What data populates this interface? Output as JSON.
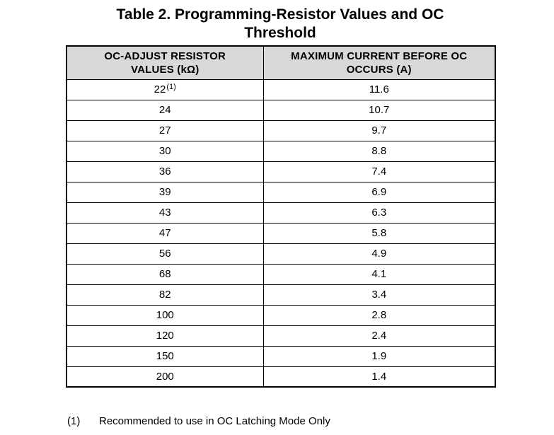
{
  "title": {
    "line1": "Table 2. Programming-Resistor Values and OC",
    "line2": "Threshold"
  },
  "table": {
    "headers": [
      {
        "line1": "OC-ADJUST RESISTOR",
        "line2": "VALUES (kΩ)"
      },
      {
        "line1": "MAXIMUM CURRENT BEFORE OC",
        "line2": "OCCURS (A)"
      }
    ],
    "rows": [
      {
        "resistor": "22",
        "note_ref": "(1)",
        "current": "11.6"
      },
      {
        "resistor": "24",
        "note_ref": "",
        "current": "10.7"
      },
      {
        "resistor": "27",
        "note_ref": "",
        "current": "9.7"
      },
      {
        "resistor": "30",
        "note_ref": "",
        "current": "8.8"
      },
      {
        "resistor": "36",
        "note_ref": "",
        "current": "7.4"
      },
      {
        "resistor": "39",
        "note_ref": "",
        "current": "6.9"
      },
      {
        "resistor": "43",
        "note_ref": "",
        "current": "6.3"
      },
      {
        "resistor": "47",
        "note_ref": "",
        "current": "5.8"
      },
      {
        "resistor": "56",
        "note_ref": "",
        "current": "4.9"
      },
      {
        "resistor": "68",
        "note_ref": "",
        "current": "4.1"
      },
      {
        "resistor": "82",
        "note_ref": "",
        "current": "3.4"
      },
      {
        "resistor": "100",
        "note_ref": "",
        "current": "2.8"
      },
      {
        "resistor": "120",
        "note_ref": "",
        "current": "2.4"
      },
      {
        "resistor": "150",
        "note_ref": "",
        "current": "1.9"
      },
      {
        "resistor": "200",
        "note_ref": "",
        "current": "1.4"
      }
    ]
  },
  "footnote": {
    "marker": "(1)",
    "text": "Recommended to use in OC Latching Mode Only"
  },
  "colors": {
    "header_bg": "#d9d9d9",
    "border": "#000000",
    "text": "#000000",
    "page_bg": "#ffffff"
  },
  "chart_data": {
    "type": "table",
    "title": "Table 2. Programming-Resistor Values and OC Threshold",
    "columns": [
      "OC-ADJUST RESISTOR VALUES (kΩ)",
      "MAXIMUM CURRENT BEFORE OC OCCURS (A)"
    ],
    "oc_adjust_resistor_kohm": [
      22,
      24,
      27,
      30,
      36,
      39,
      43,
      47,
      56,
      68,
      82,
      100,
      120,
      150,
      200
    ],
    "max_current_before_oc_A": [
      11.6,
      10.7,
      9.7,
      8.8,
      7.4,
      6.9,
      6.3,
      5.8,
      4.9,
      4.1,
      3.4,
      2.8,
      2.4,
      1.9,
      1.4
    ],
    "footnote": "(1) Recommended to use in OC Latching Mode Only"
  }
}
